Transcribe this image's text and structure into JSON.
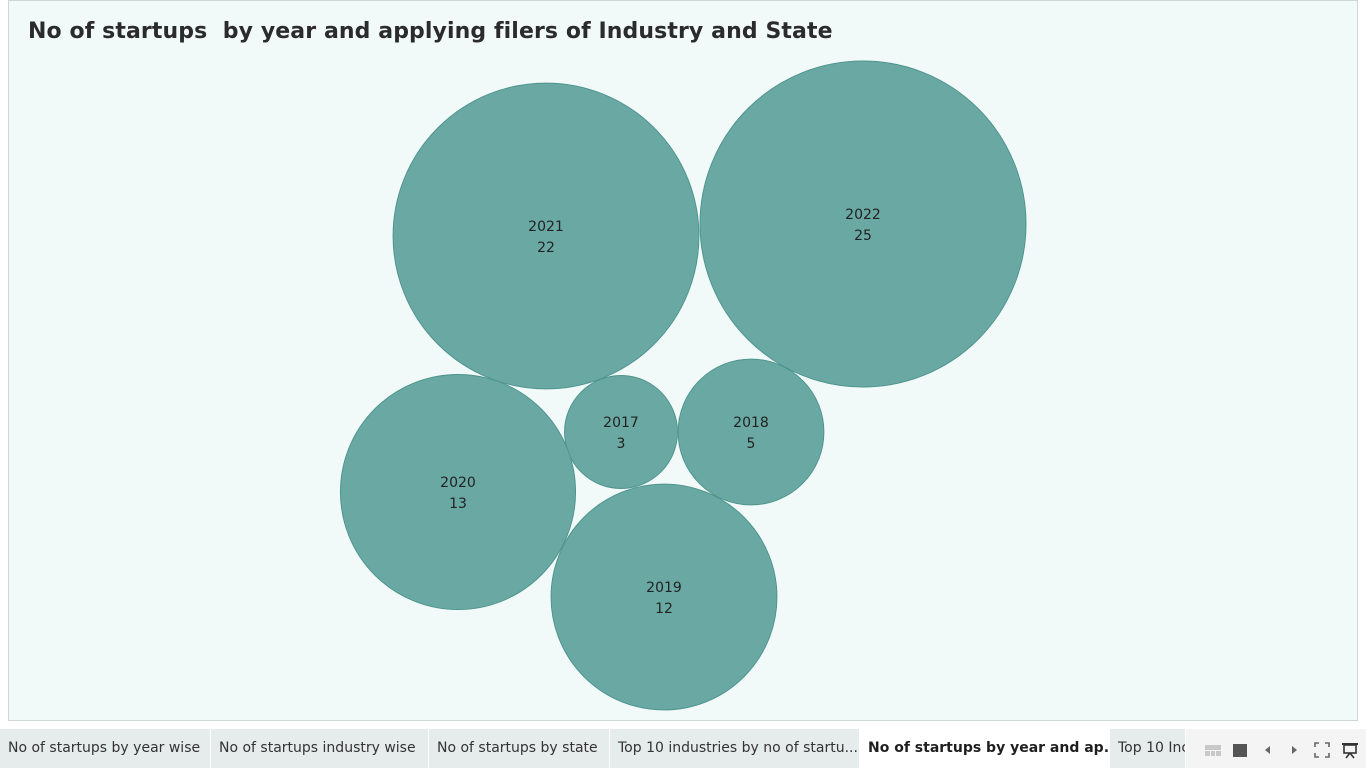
{
  "title": "No of startups  by year and applying filers of Industry and State",
  "chart_data": {
    "type": "bubble",
    "title": "No of startups  by year and applying filers of Industry and State",
    "color": "#6aa9a3",
    "stroke": "#4f958e",
    "points": [
      {
        "year": "2017",
        "value": 3
      },
      {
        "year": "2018",
        "value": 5
      },
      {
        "year": "2019",
        "value": 12
      },
      {
        "year": "2020",
        "value": 13
      },
      {
        "year": "2021",
        "value": 22
      },
      {
        "year": "2022",
        "value": 25
      }
    ]
  },
  "tabs": [
    {
      "label": "No of startups by year wise",
      "active": false
    },
    {
      "label": "No of startups industry wise",
      "active": false
    },
    {
      "label": "No of startups by state",
      "active": false
    },
    {
      "label": "Top 10 industries by no of startu...",
      "active": false
    },
    {
      "label": "No of startups by  year and ap...",
      "active": true
    },
    {
      "label": "Top 10 Inc",
      "active": false
    }
  ],
  "controls": {
    "icons": [
      "grid-view-icon",
      "single-view-icon",
      "prev-sheet-icon",
      "next-sheet-icon",
      "fullscreen-icon",
      "present-icon"
    ]
  }
}
